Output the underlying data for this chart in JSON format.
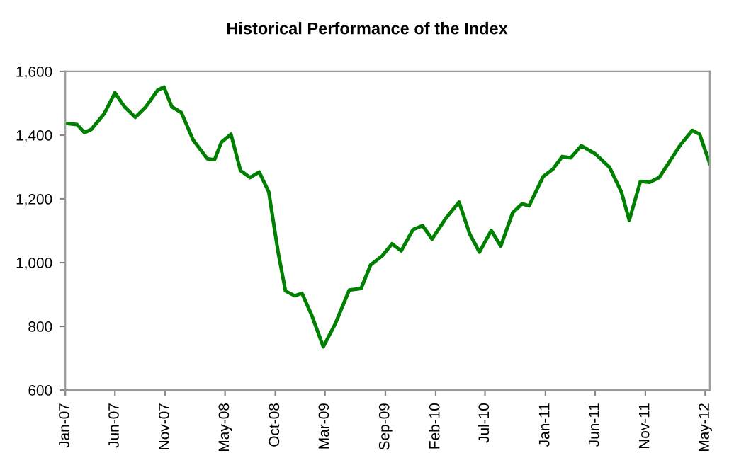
{
  "chart_data": {
    "type": "line",
    "title": "Historical Performance of the Index",
    "x": [
      "2007-01-01",
      "2007-02-06",
      "2007-02-28",
      "2007-03-21",
      "2007-04-29",
      "2007-06-01",
      "2007-06-30",
      "2007-08-02",
      "2007-09-03",
      "2007-10-09",
      "2007-10-28",
      "2007-11-21",
      "2007-12-20",
      "2008-01-25",
      "2008-03-08",
      "2008-03-30",
      "2008-04-20",
      "2008-05-19",
      "2008-06-17",
      "2008-07-16",
      "2008-08-13",
      "2008-09-11",
      "2008-10-10",
      "2008-11-01",
      "2008-11-29",
      "2008-12-21",
      "2009-01-19",
      "2009-02-24",
      "2009-04-01",
      "2009-05-14",
      "2009-06-19",
      "2009-07-18",
      "2009-08-23",
      "2009-09-21",
      "2009-10-19",
      "2009-11-24",
      "2009-12-23",
      "2010-01-21",
      "2010-03-05",
      "2010-04-13",
      "2010-05-16",
      "2010-06-14",
      "2010-07-20",
      "2010-08-18",
      "2010-09-23",
      "2010-10-22",
      "2010-11-12",
      "2010-12-25",
      "2011-01-23",
      "2011-02-21",
      "2011-03-19",
      "2011-04-20",
      "2011-06-02",
      "2011-07-15",
      "2011-08-20",
      "2011-09-13",
      "2011-10-17",
      "2011-11-14",
      "2011-12-13",
      "2012-02-16",
      "2012-03-23",
      "2012-04-14",
      "2012-05-15"
    ],
    "series": [
      {
        "color": "#008000",
        "values": [
          1437,
          1433,
          1408,
          1418,
          1467,
          1533,
          1489,
          1456,
          1489,
          1541,
          1551,
          1489,
          1471,
          1385,
          1326,
          1323,
          1378,
          1403,
          1289,
          1267,
          1284,
          1222,
          1030,
          911,
          896,
          904,
          837,
          736,
          807,
          914,
          919,
          993,
          1022,
          1059,
          1037,
          1104,
          1116,
          1074,
          1141,
          1190,
          1089,
          1033,
          1101,
          1052,
          1156,
          1185,
          1178,
          1270,
          1293,
          1333,
          1329,
          1367,
          1341,
          1299,
          1222,
          1133,
          1255,
          1252,
          1267,
          1370,
          1415,
          1403,
          1311
        ]
      }
    ],
    "xlim": [
      "2007-01-01",
      "2012-05-15"
    ],
    "xticks": [
      {
        "value": "2007-01-01",
        "label": "Jan-07"
      },
      {
        "value": "2007-06-01",
        "label": "Jun-07"
      },
      {
        "value": "2007-11-01",
        "label": "Nov-07"
      },
      {
        "value": "2008-05-01",
        "label": "May-08"
      },
      {
        "value": "2008-10-01",
        "label": "Oct-08"
      },
      {
        "value": "2009-03-01",
        "label": "Mar-09"
      },
      {
        "value": "2009-09-01",
        "label": "Sep-09"
      },
      {
        "value": "2010-02-01",
        "label": "Feb-10"
      },
      {
        "value": "2010-07-01",
        "label": "Jul-10"
      },
      {
        "value": "2011-01-01",
        "label": "Jan-11"
      },
      {
        "value": "2011-06-01",
        "label": "Jun-11"
      },
      {
        "value": "2011-11-01",
        "label": "Nov-11"
      },
      {
        "value": "2012-05-01",
        "label": "May-12"
      }
    ],
    "ylim": [
      600,
      1600
    ],
    "yticks": [
      600,
      800,
      {
        "value": 1000,
        "label": "1,000"
      },
      {
        "value": 1200,
        "label": "1,200"
      },
      {
        "value": 1400,
        "label": "1,400"
      },
      {
        "value": 1600,
        "label": "1,600"
      }
    ],
    "grid": false,
    "marker": "none",
    "line_style": "solid"
  }
}
